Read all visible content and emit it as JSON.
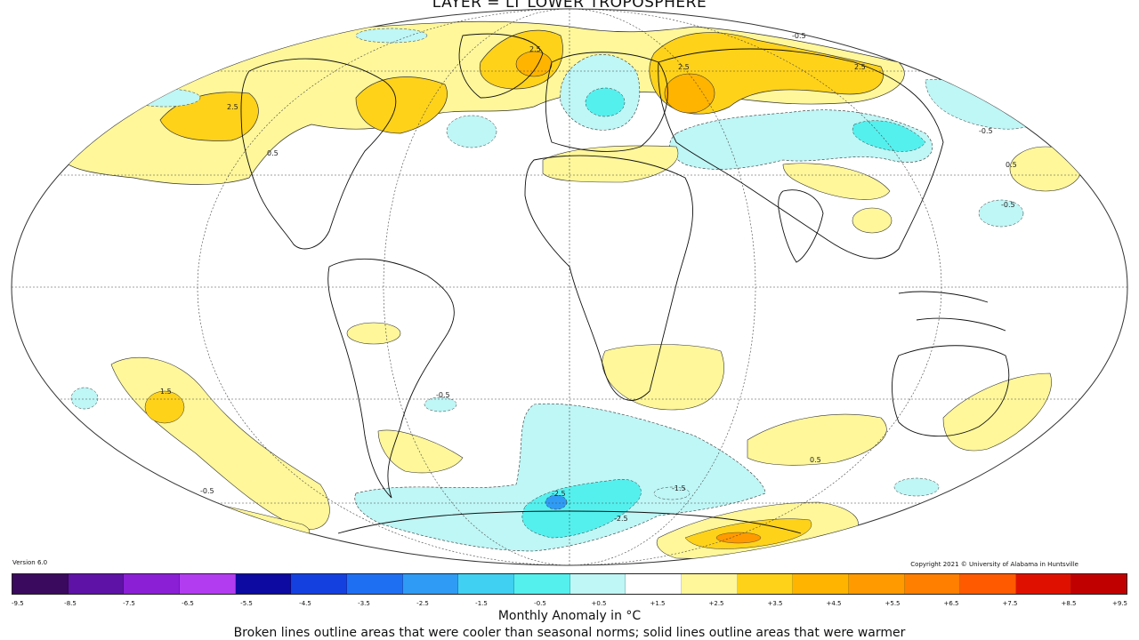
{
  "title": "LAYER = LT LOWER TROPOSPHERE",
  "version": "Version 6.0",
  "copyright": "Copyright 2021 © University of Alabama in Huntsville",
  "legend": {
    "ticks": [
      "-9.5",
      "-8.5",
      "-7.5",
      "-6.5",
      "-5.5",
      "-4.5",
      "-3.5",
      "-2.5",
      "-1.5",
      "-0.5",
      "+0.5",
      "+1.5",
      "+2.5",
      "+3.5",
      "+4.5",
      "+5.5",
      "+6.5",
      "+7.5",
      "+8.5",
      "+9.5"
    ],
    "colors": [
      "#3a0a5e",
      "#5e12a6",
      "#8a1fd6",
      "#b23cf0",
      "#0c0aa0",
      "#1440e0",
      "#1f6ff2",
      "#2f9bf4",
      "#3fd0f2",
      "#54f0ee",
      "#bff6f6",
      "#ffffff",
      "#fff79a",
      "#ffd21a",
      "#ffb400",
      "#ff9a00",
      "#ff7f00",
      "#ff5a00",
      "#e01000",
      "#c00000"
    ],
    "caption": "Monthly Anomaly in °C",
    "note": "Broken lines outline areas that were cooler than seasonal norms; solid lines outline areas that were warmer"
  },
  "contour_labels": [
    "2.5",
    "2.5",
    "2.5",
    "2.5",
    "-0.5",
    "0.5",
    "0.5",
    "1.5",
    "-0.5",
    "-1.5",
    "-2.5",
    "-0.5",
    "-0.5",
    "0.5",
    "-0.5",
    "-2.5"
  ]
}
